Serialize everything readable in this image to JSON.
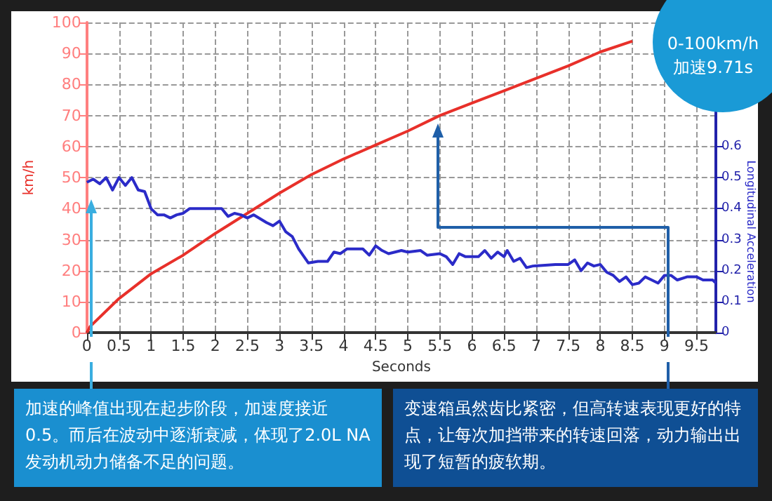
{
  "chart_data": {
    "type": "line",
    "xlabel": "Seconds",
    "ylabel": "km/h",
    "y2label": "Longitudinal Acceleration",
    "xlim": [
      0,
      9.8
    ],
    "xticks": [
      0,
      0.5,
      1,
      1.5,
      2,
      2.5,
      3,
      3.5,
      4,
      4.5,
      5,
      5.5,
      6,
      6.5,
      7,
      7.5,
      8,
      8.5,
      9,
      9.5
    ],
    "ylim": [
      0,
      100
    ],
    "yticks": [
      0,
      10,
      20,
      30,
      40,
      50,
      60,
      70,
      80,
      90,
      100
    ],
    "y2lim": [
      0,
      1
    ],
    "y2ticks": [
      0,
      0.1,
      0.2,
      0.3,
      0.4,
      0.5,
      0.6
    ],
    "grid": true,
    "marker": "none",
    "line_style": "solid",
    "series": [
      {
        "color": "#e8302a",
        "x": [
          0,
          0.05,
          0.5,
          1,
          1.5,
          2,
          2.5,
          3,
          3.5,
          4,
          4.5,
          5,
          5.5,
          6,
          6.5,
          7,
          7.5,
          8,
          8.5
        ],
        "values": [
          0,
          2,
          11,
          19,
          25,
          32,
          38.5,
          45,
          51,
          56,
          60.5,
          65,
          70,
          74,
          78,
          82,
          86,
          90.5,
          94
        ]
      },
      {
        "color": "#2b2bc8",
        "axis": "y2",
        "x": [
          0,
          0.1,
          0.2,
          0.3,
          0.4,
          0.5,
          0.6,
          0.7,
          0.8,
          0.9,
          1.0,
          1.1,
          1.2,
          1.3,
          1.4,
          1.5,
          1.6,
          1.8,
          2.0,
          2.1,
          2.2,
          2.3,
          2.4,
          2.5,
          2.6,
          2.8,
          2.9,
          3.0,
          3.1,
          3.2,
          3.3,
          3.45,
          3.6,
          3.75,
          3.85,
          3.95,
          4.05,
          4.3,
          4.4,
          4.5,
          4.6,
          4.7,
          4.9,
          5.0,
          5.2,
          5.3,
          5.5,
          5.6,
          5.7,
          5.8,
          5.9,
          6.1,
          6.2,
          6.3,
          6.4,
          6.5,
          6.55,
          6.65,
          6.75,
          6.85,
          6.95,
          7.3,
          7.5,
          7.6,
          7.7,
          7.8,
          7.9,
          8.0,
          8.1,
          8.2,
          8.3,
          8.4,
          8.5,
          8.6,
          8.7,
          8.8,
          8.9,
          9.0,
          9.1,
          9.2,
          9.35,
          9.5,
          9.6,
          9.75,
          9.8
        ],
        "values": [
          0.485,
          0.495,
          0.48,
          0.5,
          0.46,
          0.5,
          0.475,
          0.5,
          0.46,
          0.455,
          0.4,
          0.38,
          0.38,
          0.37,
          0.38,
          0.385,
          0.4,
          0.4,
          0.4,
          0.4,
          0.375,
          0.385,
          0.38,
          0.37,
          0.38,
          0.355,
          0.345,
          0.36,
          0.325,
          0.31,
          0.27,
          0.225,
          0.23,
          0.23,
          0.26,
          0.255,
          0.27,
          0.27,
          0.25,
          0.28,
          0.265,
          0.255,
          0.265,
          0.26,
          0.265,
          0.25,
          0.255,
          0.245,
          0.22,
          0.255,
          0.245,
          0.245,
          0.265,
          0.24,
          0.26,
          0.245,
          0.265,
          0.23,
          0.24,
          0.21,
          0.215,
          0.22,
          0.22,
          0.235,
          0.2,
          0.225,
          0.215,
          0.22,
          0.195,
          0.185,
          0.165,
          0.18,
          0.155,
          0.16,
          0.18,
          0.17,
          0.16,
          0.185,
          0.185,
          0.17,
          0.18,
          0.18,
          0.17,
          0.17,
          0.16
        ]
      }
    ],
    "annotations": [
      "0-100km/h 加速9.71s",
      "加速的峰值出现在起步阶段，加速度接近0.5。而后在波动中逐渐衰减，体现了2.0L NA发动机动力储备不足的问题。",
      "变速箱虽然齿比紧密，但高转速表现更好的特点，让每次加挡带来的转速回落，动力输出出现了短暂的疲软期。"
    ]
  }
}
